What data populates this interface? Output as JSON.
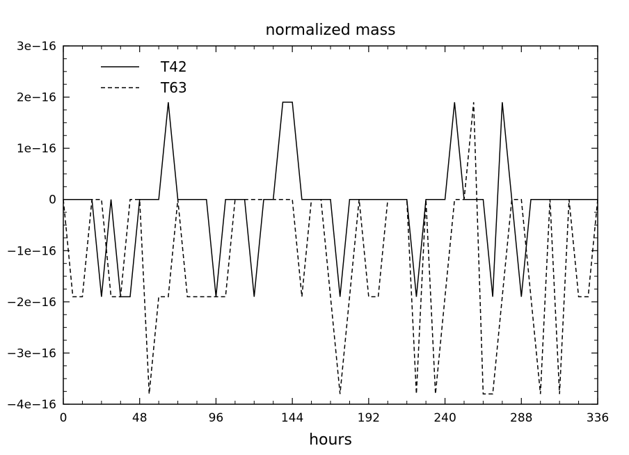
{
  "chart_data": {
    "type": "line",
    "title": "normalized mass",
    "xlabel": "hours",
    "ylabel": "",
    "xlim": [
      0,
      336
    ],
    "ylim": [
      -4e-16,
      3e-16
    ],
    "x_ticks": [
      0,
      48,
      96,
      144,
      192,
      240,
      288,
      336
    ],
    "x_tick_labels": [
      "0",
      "48",
      "96",
      "144",
      "192",
      "240",
      "288",
      "336"
    ],
    "y_ticks": [
      3e-16,
      2e-16,
      1e-16,
      0,
      -1e-16,
      -2e-16,
      -3e-16,
      -4e-16
    ],
    "y_tick_labels": [
      "3e−16",
      "2e−16",
      "1e−16",
      "0",
      "−1e−16",
      "−2e−16",
      "−3e−16",
      "−4e−16"
    ],
    "grid": false,
    "legend_position": "top-left",
    "series": [
      {
        "name": "T42",
        "style": "solid",
        "color": "#000000",
        "points": [
          [
            0,
            0
          ],
          [
            18,
            0
          ],
          [
            24,
            -1.9e-16
          ],
          [
            30,
            0
          ],
          [
            36,
            -1.9e-16
          ],
          [
            42,
            -1.9e-16
          ],
          [
            48,
            0
          ],
          [
            60,
            0
          ],
          [
            66,
            1.9e-16
          ],
          [
            72,
            0
          ],
          [
            90,
            0
          ],
          [
            96,
            -1.9e-16
          ],
          [
            102,
            0
          ],
          [
            114,
            0
          ],
          [
            120,
            -1.9e-16
          ],
          [
            126,
            0
          ],
          [
            132,
            0
          ],
          [
            138,
            1.9e-16
          ],
          [
            144,
            1.9e-16
          ],
          [
            150,
            0
          ],
          [
            168,
            0
          ],
          [
            174,
            -1.9e-16
          ],
          [
            180,
            0
          ],
          [
            216,
            0
          ],
          [
            222,
            -1.9e-16
          ],
          [
            228,
            0
          ],
          [
            240,
            0
          ],
          [
            246,
            1.9e-16
          ],
          [
            252,
            0
          ],
          [
            264,
            0
          ],
          [
            270,
            -1.9e-16
          ],
          [
            276,
            1.9e-16
          ],
          [
            282,
            0
          ],
          [
            288,
            -1.9e-16
          ],
          [
            294,
            0
          ],
          [
            336,
            0
          ]
        ]
      },
      {
        "name": "T63",
        "style": "dashed",
        "color": "#000000",
        "points": [
          [
            0,
            0
          ],
          [
            6,
            -1.9e-16
          ],
          [
            12,
            -1.9e-16
          ],
          [
            18,
            0
          ],
          [
            24,
            0
          ],
          [
            30,
            -1.9e-16
          ],
          [
            36,
            -1.9e-16
          ],
          [
            42,
            0
          ],
          [
            48,
            0
          ],
          [
            54,
            -3.8e-16
          ],
          [
            60,
            -1.9e-16
          ],
          [
            66,
            -1.9e-16
          ],
          [
            72,
            0
          ],
          [
            78,
            -1.9e-16
          ],
          [
            96,
            -1.9e-16
          ],
          [
            102,
            -1.9e-16
          ],
          [
            108,
            0
          ],
          [
            144,
            0
          ],
          [
            150,
            -1.9e-16
          ],
          [
            156,
            0
          ],
          [
            162,
            0
          ],
          [
            174,
            -3.8e-16
          ],
          [
            186,
            0
          ],
          [
            192,
            -1.9e-16
          ],
          [
            198,
            -1.9e-16
          ],
          [
            204,
            0
          ],
          [
            216,
            0
          ],
          [
            222,
            -3.8e-16
          ],
          [
            228,
            0
          ],
          [
            234,
            -3.8e-16
          ],
          [
            246,
            0
          ],
          [
            252,
            0
          ],
          [
            258,
            1.9e-16
          ],
          [
            264,
            -3.8e-16
          ],
          [
            270,
            -3.8e-16
          ],
          [
            282,
            0
          ],
          [
            288,
            0
          ],
          [
            300,
            -3.8e-16
          ],
          [
            306,
            0
          ],
          [
            312,
            -3.8e-16
          ],
          [
            318,
            0
          ],
          [
            324,
            -1.9e-16
          ],
          [
            330,
            -1.9e-16
          ],
          [
            336,
            0
          ]
        ]
      }
    ]
  }
}
